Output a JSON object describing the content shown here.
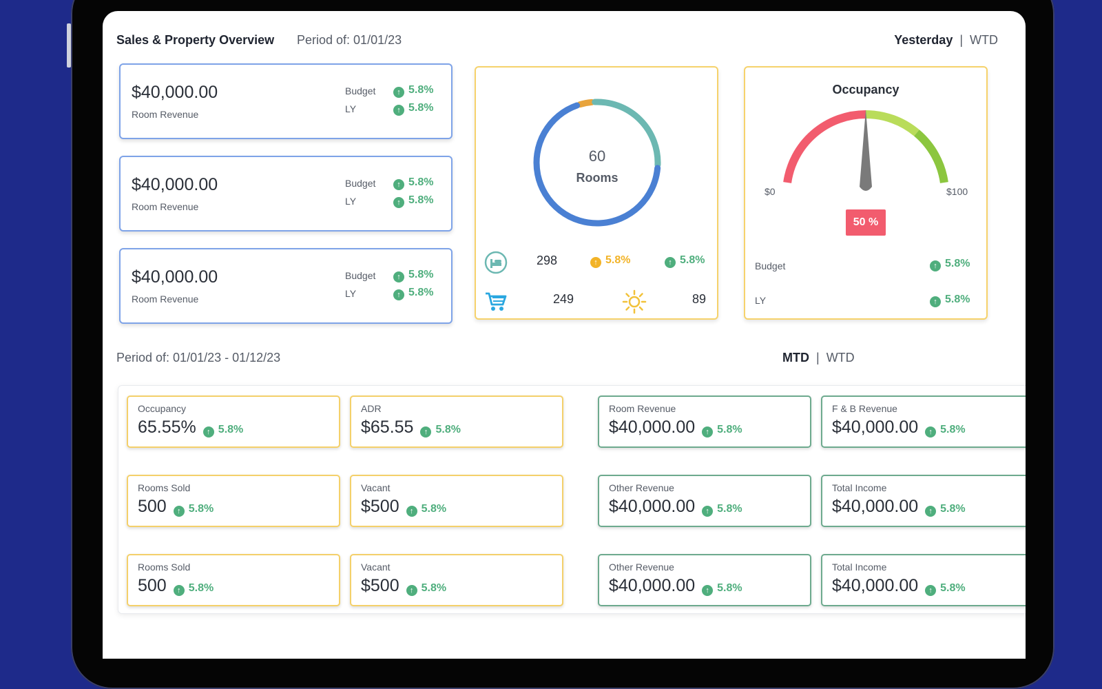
{
  "header": {
    "title": "Sales & Property Overview",
    "period": "Period of: 01/01/23",
    "toggle_active": "Yesterday",
    "toggle_other": "WTD"
  },
  "revenue_cards": [
    {
      "amount": "$40,000.00",
      "label": "Room Revenue",
      "budget_label": "Budget",
      "budget_change": "5.8%",
      "ly_label": "LY",
      "ly_change": "5.8%"
    },
    {
      "amount": "$40,000.00",
      "label": "Room Revenue",
      "budget_label": "Budget",
      "budget_change": "5.8%",
      "ly_label": "LY",
      "ly_change": "5.8%"
    },
    {
      "amount": "$40,000.00",
      "label": "Room Revenue",
      "budget_label": "Budget",
      "budget_change": "5.8%",
      "ly_label": "LY",
      "ly_change": "5.8%"
    }
  ],
  "rooms_panel": {
    "total": "60",
    "total_label": "Rooms",
    "segments": [
      {
        "value": 4,
        "color": "#e8a43c"
      },
      {
        "value": 27,
        "color": "#6cb8b2"
      },
      {
        "value": 69,
        "color": "#4a80d3"
      }
    ],
    "row1": {
      "icon": "bed-icon",
      "value": "298",
      "change_a": "5.8%",
      "change_b": "5.8%"
    },
    "row2": {
      "icon": "cart-icon",
      "value": "249",
      "icon2": "sun-icon",
      "value2": "89"
    }
  },
  "occupancy_panel": {
    "title": "Occupancy",
    "min_label": "$0",
    "max_label": "$100",
    "value": 50,
    "value_label": "50 %",
    "budget_label": "Budget",
    "budget_change": "5.8%",
    "ly_label": "LY",
    "ly_change": "5.8%",
    "colors": {
      "low": "#f25c6e",
      "mid": "#b9dc5a",
      "high": "#8cc63f",
      "badge": "#f25c6e",
      "needle": "#7a7a7a"
    }
  },
  "period_section": {
    "period": "Period of: 01/01/23 - 01/12/23",
    "toggle_active": "MTD",
    "toggle_other": "WTD"
  },
  "kpis": [
    {
      "label": "Occupancy",
      "value": "65.55%",
      "change": "5.8%",
      "style": "y"
    },
    {
      "label": "ADR",
      "value": "$65.55",
      "change": "5.8%",
      "style": "y"
    },
    {
      "label": "Room Revenue",
      "value": "$40,000.00",
      "change": "5.8%",
      "style": "g"
    },
    {
      "label": "F & B Revenue",
      "value": "$40,000.00",
      "change": "5.8%",
      "style": "g"
    },
    {
      "label": "Rooms Sold",
      "value": "500",
      "change": "5.8%",
      "style": "y"
    },
    {
      "label": "Vacant",
      "value": "$500",
      "change": "5.8%",
      "style": "y"
    },
    {
      "label": "Other Revenue",
      "value": "$40,000.00",
      "change": "5.8%",
      "style": "g"
    },
    {
      "label": "Total Income",
      "value": "$40,000.00",
      "change": "5.8%",
      "style": "g"
    },
    {
      "label": "Rooms Sold",
      "value": "500",
      "change": "5.8%",
      "style": "y"
    },
    {
      "label": "Vacant",
      "value": "$500",
      "change": "5.8%",
      "style": "y"
    },
    {
      "label": "Other Revenue",
      "value": "$40,000.00",
      "change": "5.8%",
      "style": "g"
    },
    {
      "label": "Total Income",
      "value": "$40,000.00",
      "change": "5.8%",
      "style": "g"
    }
  ]
}
